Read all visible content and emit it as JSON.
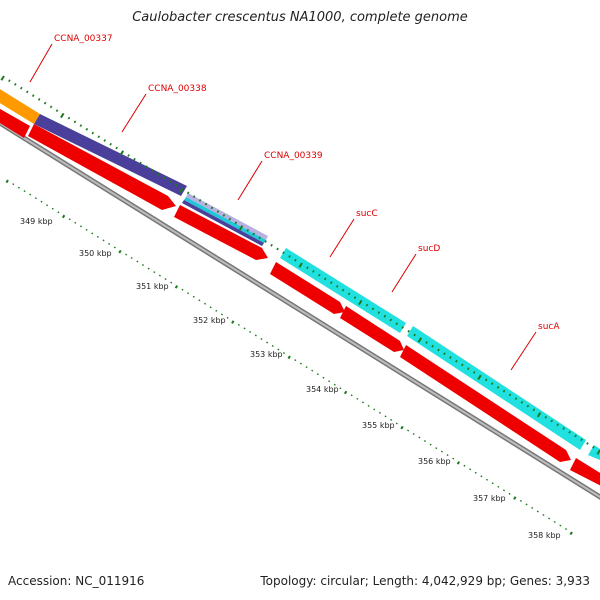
{
  "title": "Caulobacter crescentus NA1000, complete genome",
  "footer": {
    "accession": "Accession: NC_011916",
    "summary": "Topology: circular; Length: 4,042,929 bp; Genes: 3,933"
  },
  "colors": {
    "label": "#dd0000",
    "ticks": "#1a7a1a",
    "orange": "#ff9900",
    "purple": "#4a3f9a",
    "cyan": "#21e0e0",
    "red": "#ee0000",
    "backbone": "#8c8c8c"
  },
  "ruler": [
    {
      "label": "349 kbp"
    },
    {
      "label": "350 kbp"
    },
    {
      "label": "351 kbp"
    },
    {
      "label": "352 kbp"
    },
    {
      "label": "353 kbp"
    },
    {
      "label": "354 kbp"
    },
    {
      "label": "355 kbp"
    },
    {
      "label": "356 kbp"
    },
    {
      "label": "357 kbp"
    },
    {
      "label": "358 kbp"
    }
  ],
  "genes": [
    {
      "name": "CCNA_00337",
      "color": "orange"
    },
    {
      "name": "CCNA_00338",
      "color": "purple"
    },
    {
      "name": "CCNA_00339",
      "color": "lavender"
    },
    {
      "name": "sucC",
      "color": "cyan"
    },
    {
      "name": "sucD",
      "color": "cyan"
    },
    {
      "name": "sucA",
      "color": "cyan"
    }
  ]
}
